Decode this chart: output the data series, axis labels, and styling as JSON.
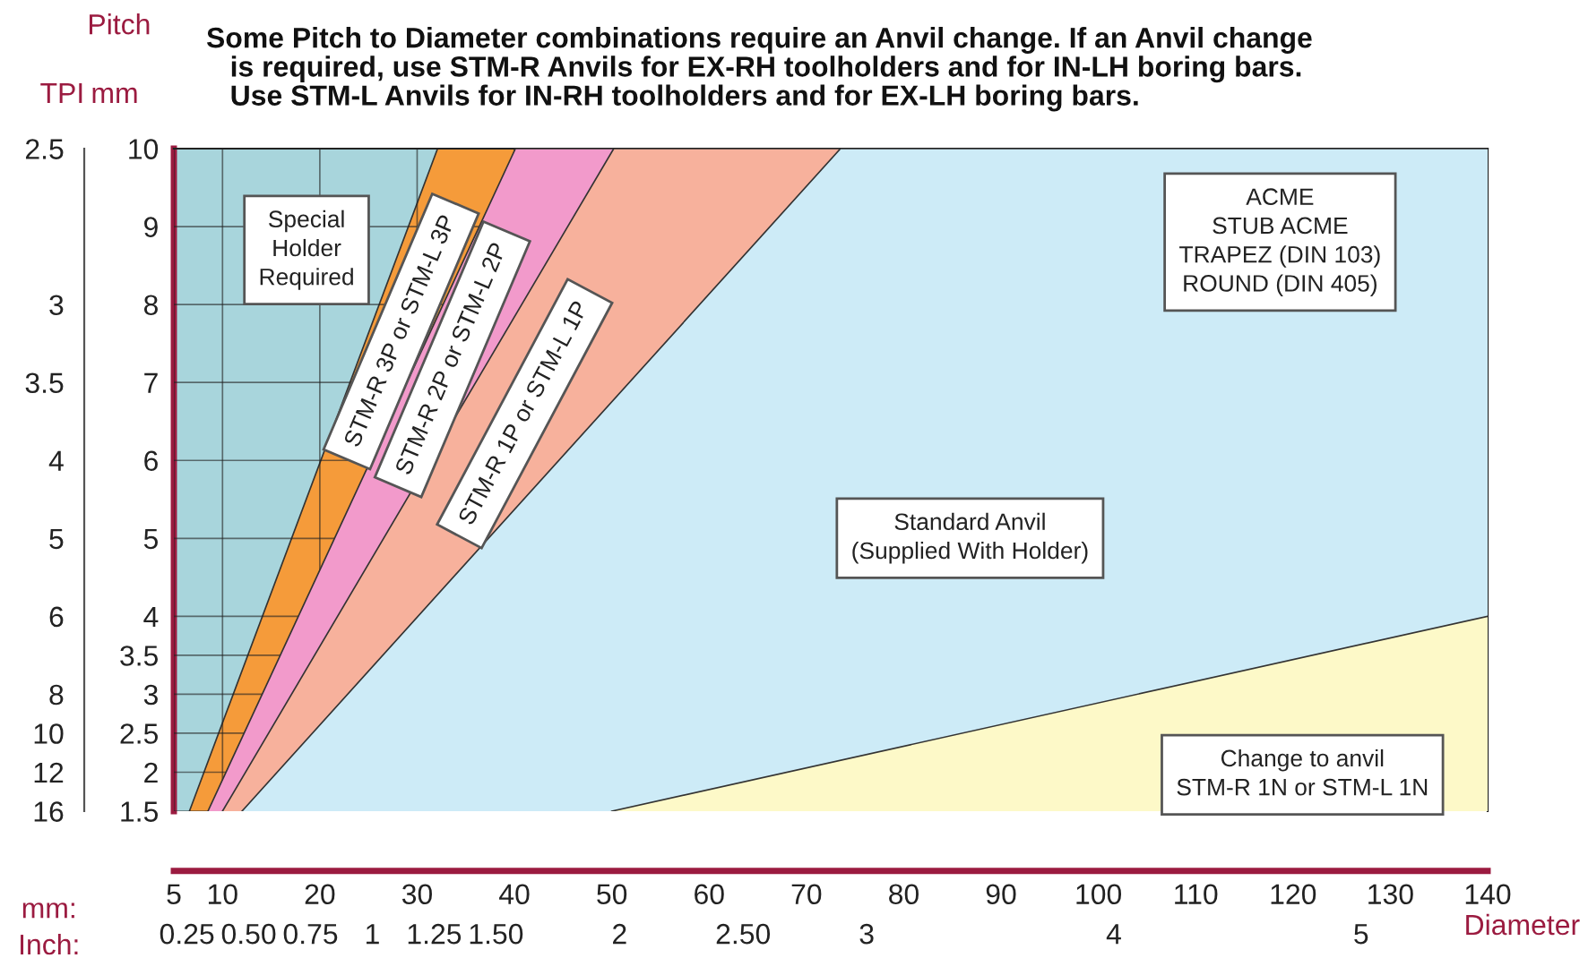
{
  "chart_data": {
    "type": "area",
    "title": "Some Pitch to Diameter combinations require an Anvil change. If an Anvil change\n   is required, use STM-R Anvils for EX-RH toolholders and for IN-LH boring bars.\n   Use STM-L Anvils for IN-RH toolholders and for EX-LH boring bars.",
    "xlabel": "mm:",
    "x2label": "Inch:",
    "ylabel": "mm",
    "y2label": "TPI",
    "xlim": [
      5,
      140
    ],
    "xticks": [
      5,
      10,
      20,
      30,
      40,
      50,
      60,
      70,
      80,
      90,
      100,
      110,
      120,
      130,
      140
    ],
    "x2lim": [
      0.197,
      5.512
    ],
    "x2ticks": [
      0.25,
      {
        "value": 0.5,
        "label": "0.50"
      },
      0.75,
      1,
      1.25,
      {
        "value": 1.5,
        "label": "1.50"
      },
      2,
      {
        "value": 2.5,
        "label": "2.50"
      },
      3,
      4,
      5
    ],
    "ylim": [
      1.5,
      10
    ],
    "yticks": [
      1.5,
      2,
      2.5,
      3,
      3.5,
      4,
      5,
      6,
      7,
      8,
      9,
      10
    ],
    "y2_categories": [
      "2.5",
      null,
      null,
      null,
      "3",
      null,
      "3.5",
      null,
      "4",
      null,
      "5",
      null,
      "6",
      null,
      "8",
      "10",
      "12",
      "16"
    ],
    "grid": true,
    "series": [
      {
        "color": "#a8d5dc",
        "x": [
          5,
          140
        ],
        "values": [
          10,
          10
        ]
      },
      {
        "color": "#f59b3a",
        "x": [
          6.6,
          32.1,
          140
        ],
        "values": [
          1.5,
          10,
          10
        ]
      },
      {
        "color": "#f29acb",
        "x": [
          8.5,
          40.1,
          140
        ],
        "values": [
          1.5,
          10,
          10
        ]
      },
      {
        "color": "#f7b19c",
        "x": [
          10,
          50.2,
          140
        ],
        "values": [
          1.5,
          10,
          10
        ]
      },
      {
        "color": "#cdebf7",
        "x": [
          12,
          73.5,
          140
        ],
        "values": [
          1.5,
          10,
          10
        ]
      },
      {
        "color": "#fdf9c8",
        "x": [
          50,
          140
        ],
        "values": [
          1.5,
          4
        ]
      }
    ],
    "annotations": [
      "Special\nHolder\nRequired",
      "STM-R 3P or STM-L 3P",
      "STM-R 2P or STM-L 2P",
      "STM-R 1P or STM-L 1P",
      "ACME\nSTUB ACME\nTRAPEZ (DIN 103)\nROUND (DIN 405)",
      "Standard Anvil\n(Supplied With Holder)",
      "Change to anvil\nSTM-R 1N or STM-L 1N",
      "Pitch",
      "Diameter"
    ]
  }
}
